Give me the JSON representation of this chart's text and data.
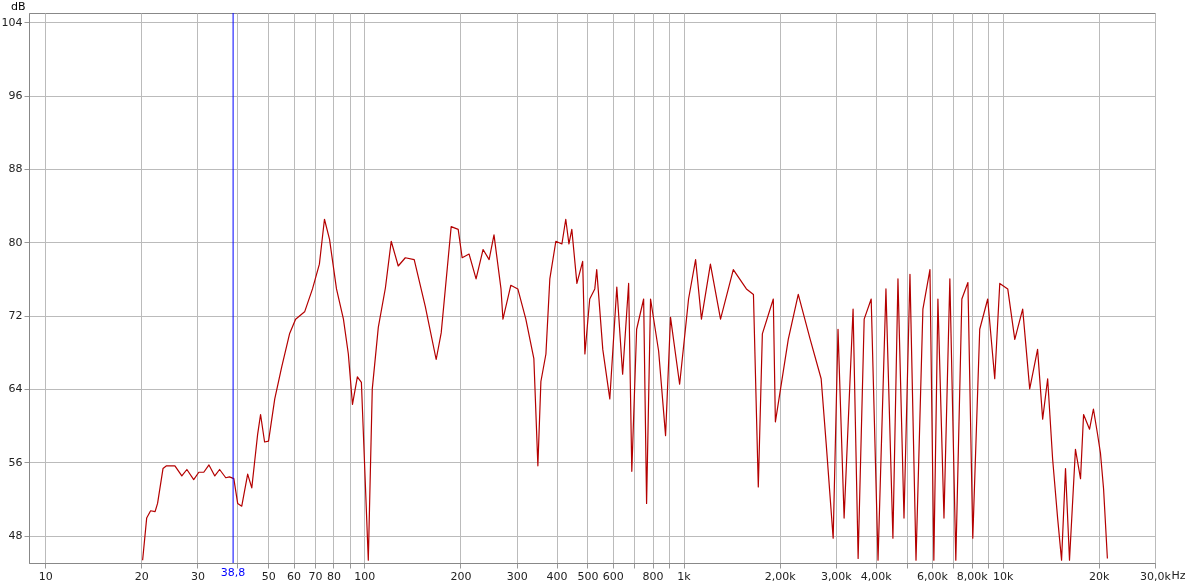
{
  "chart_data": {
    "type": "line",
    "ylabel": "dB",
    "xlabel": "Hz",
    "xlim": [
      8.9,
      30000
    ],
    "ylim": [
      45,
      105
    ],
    "log": "x",
    "grid": true,
    "line_style": "solid",
    "marker": "none",
    "yticks": [
      48,
      56,
      64,
      72,
      80,
      88,
      96,
      104
    ],
    "xticks": [
      10,
      20,
      30,
      {
        "value": 40,
        "label": null
      },
      50,
      60,
      70,
      80,
      {
        "value": 90,
        "label": null
      },
      100,
      200,
      300,
      400,
      500,
      600,
      {
        "value": 700,
        "label": null
      },
      800,
      {
        "value": 900,
        "label": null
      },
      {
        "value": 1000,
        "label": "1k"
      },
      {
        "value": 2000,
        "label": "2,00k"
      },
      {
        "value": 3000,
        "label": "3,00k"
      },
      {
        "value": 4000,
        "label": "4,00k"
      },
      {
        "value": 5000,
        "label": null
      },
      {
        "value": 6000,
        "label": "6,00k"
      },
      {
        "value": 7000,
        "label": null
      },
      {
        "value": 8000,
        "label": "8,00k"
      },
      {
        "value": 9000,
        "label": null
      },
      {
        "value": 10000,
        "label": "10k"
      },
      {
        "value": 20000,
        "label": "20k"
      },
      {
        "value": 30000,
        "label": "30,0k"
      }
    ],
    "ref_lines": [
      {
        "axis": "x",
        "value": 38.8,
        "label": "38,8",
        "color": "#0000ff"
      }
    ],
    "x": [
      20.2,
      20.8,
      21.4,
      22.1,
      22.5,
      23.4,
      24.0,
      25.5,
      26.8,
      27.8,
      29.2,
      30.3,
      31.4,
      32.6,
      34.0,
      35.2,
      36.8,
      37.8,
      39.0,
      40.1,
      41.3,
      43.1,
      44.4,
      46.3,
      47.3,
      48.7,
      50.1,
      52.4,
      55.1,
      58.3,
      60.9,
      65.0,
      68.8,
      72.3,
      75.0,
      77.8,
      81.8,
      86.0,
      89.1,
      91.8,
      95.1,
      97.9,
      102.9,
      105.9,
      110.6,
      116.4,
      121.4,
      127.7,
      134.4,
      143.3,
      155.2,
      167.9,
      174.1,
      187.1,
      196.8,
      202.5,
      212.9,
      223.9,
      235.5,
      246.0,
      254.8,
      268.0,
      271.8,
      287.7,
      302.6,
      320.6,
      339.7,
      349.7,
      357.4,
      370.6,
      381.2,
      398.1,
      415.9,
      427.6,
      437.5,
      446.7,
      463.4,
      483.1,
      490.9,
      508.3,
      527.2,
      534.6,
      558.5,
      587.5,
      618.0,
      644.5,
      673.0,
      688.6,
      713.0,
      750.0,
      766.1,
      788.3,
      835.7,
      878.5,
      910.5,
      972.3,
      1037,
      1091,
      1138,
      1214,
      1306,
      1432,
      1574,
      1656,
      1715,
      1766,
      1911,
      1940,
      2129,
      2288,
      2494,
      2699,
      2799,
      2943,
      3048,
      3185,
      3398,
      3524,
      3681,
      3872,
      4068,
      4307,
      4529,
      4697,
      4906,
      5122,
      5350,
      5623,
      5916,
      6085,
      6266,
      6546,
      6830,
      7130,
      7447,
      7780,
      8058,
      8472,
      8974,
      9441,
      9790,
      10370,
      10910,
      11550,
      12150,
      12860,
      13340,
      13830,
      14330,
      14860,
      15290,
      15730,
      16190,
      16900,
      17530,
      17920,
      18710,
      19240,
      19810,
      20240,
      20700,
      21280
    ],
    "series": [
      {
        "color": "#b40000",
        "values": [
          45.3,
          49.9,
          50.7,
          50.6,
          51.5,
          55.3,
          55.6,
          55.6,
          54.5,
          55.2,
          54.1,
          54.9,
          54.9,
          55.7,
          54.5,
          55.2,
          54.3,
          54.4,
          54.2,
          51.5,
          51.2,
          54.7,
          53.2,
          59.0,
          61.2,
          58.2,
          58.3,
          62.9,
          66.4,
          70.0,
          71.6,
          72.4,
          74.9,
          77.6,
          82.5,
          80.3,
          74.9,
          71.6,
          67.8,
          62.3,
          65.3,
          64.7,
          45.3,
          64,
          70.7,
          75.0,
          80.1,
          77.4,
          78.3,
          78.1,
          73.0,
          67.2,
          70.1,
          81.7,
          81.4,
          78.3,
          78.7,
          76.0,
          79.2,
          78.1,
          80.8,
          74.9,
          71.6,
          75.3,
          74.9,
          71.6,
          67.3,
          55.6,
          64.8,
          67.8,
          76.0,
          80.1,
          79.8,
          82.5,
          79.8,
          81.4,
          75.5,
          77.9,
          67.8,
          73.8,
          74.9,
          77.0,
          68.3,
          62.9,
          75.1,
          65.6,
          75.5,
          55.0,
          70.5,
          73.8,
          51.5,
          73.8,
          68.1,
          58.9,
          71.8,
          64.5,
          73.8,
          78.1,
          71.6,
          77.6,
          71.6,
          77.0,
          74.9,
          74.3,
          53.3,
          70.0,
          73.8,
          60.4,
          69.4,
          74.3,
          69.4,
          65.1,
          58.0,
          47.7,
          70.5,
          49.9,
          72.7,
          45.5,
          71.6,
          73.8,
          45.3,
          74.9,
          47.7,
          76.0,
          49.9,
          76.5,
          45.3,
          72.7,
          77.0,
          45.3,
          73.8,
          49.9,
          76.0,
          45.3,
          73.8,
          75.6,
          47.7,
          70.5,
          73.8,
          65.1,
          75.5,
          74.9,
          69.4,
          72.7,
          64.0,
          68.3,
          60.7,
          65.1,
          56.4,
          49.9,
          45.3,
          55.3,
          45.3,
          57.4,
          54.2,
          61.2,
          59.6,
          61.8,
          59.1,
          57.0,
          53.1,
          45.5
        ]
      }
    ]
  }
}
